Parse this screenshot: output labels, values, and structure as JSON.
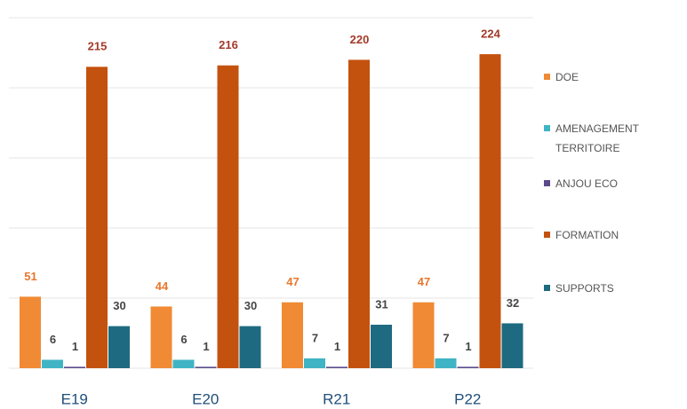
{
  "chart_data": {
    "type": "bar",
    "categories": [
      "E19",
      "E20",
      "R21",
      "P22"
    ],
    "series": [
      {
        "name": "DOE",
        "color": "#f08a34",
        "values": [
          51,
          44,
          47,
          47
        ]
      },
      {
        "name": "AMENAGEMENT TERRITOIRE",
        "color": "#3fb4c4",
        "values": [
          6,
          6,
          7,
          7
        ]
      },
      {
        "name": "ANJOU ECO",
        "color": "#5a4a8c",
        "values": [
          1,
          1,
          1,
          1
        ]
      },
      {
        "name": "FORMATION",
        "color": "#c4520f",
        "values": [
          215,
          216,
          220,
          224
        ]
      },
      {
        "name": "SUPPORTS",
        "color": "#1e6a80",
        "values": [
          30,
          30,
          31,
          32
        ]
      }
    ],
    "ylim": [
      0,
      250
    ],
    "yticks": [
      0,
      50,
      100,
      150,
      200,
      250
    ],
    "grid": true,
    "legend": "right"
  }
}
